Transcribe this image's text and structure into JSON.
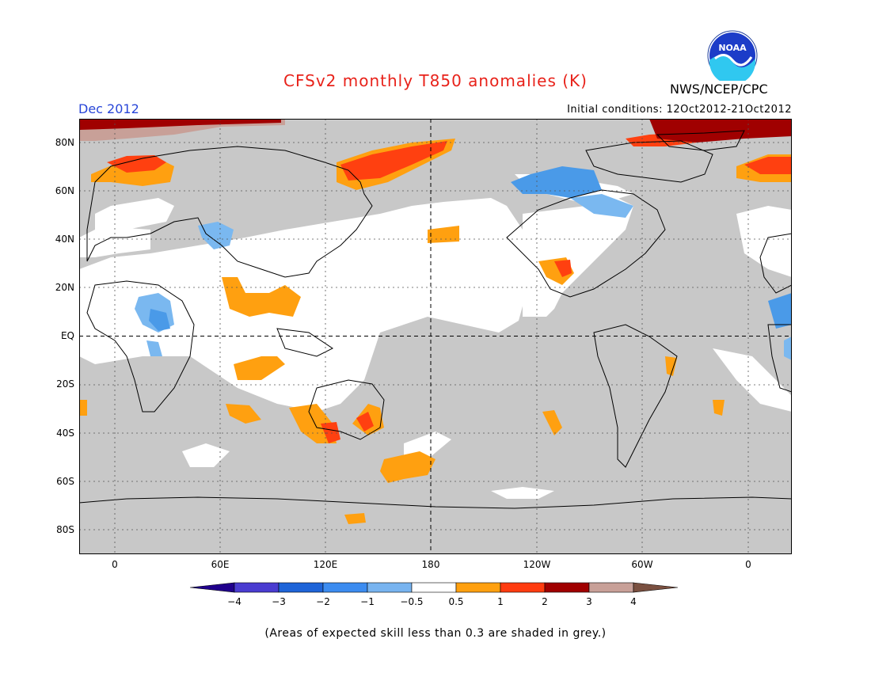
{
  "header": {
    "title": "CFSv2 monthly T850 anomalies (K)",
    "period": "Dec 2012",
    "initial_conditions": "Initial conditions: 12Oct2012-21Oct2012",
    "agency": "NWS/NCEP/CPC",
    "logo_text": "NOAA"
  },
  "map": {
    "lat_labels": [
      "80N",
      "60N",
      "40N",
      "20N",
      "EQ",
      "20S",
      "40S",
      "60S",
      "80S"
    ],
    "lon_labels": [
      "0",
      "60E",
      "120E",
      "180",
      "120W",
      "60W",
      "0"
    ],
    "colors": {
      "grey_low_skill": "#c8c8c8",
      "ocean_skill": "#ffffff",
      "cool_1": "#7ab8f0",
      "cool_2": "#4a9ae8",
      "warm_1": "#ffa010",
      "warm_2": "#ff4010",
      "warm_3": "#a00000",
      "warm_4": "#c8a098"
    }
  },
  "legend": {
    "labels": [
      "−4",
      "−3",
      "−2",
      "−1",
      "−0.5",
      "0.5",
      "1",
      "2",
      "3",
      "4"
    ],
    "colors": [
      "#20008c",
      "#4a3cd0",
      "#1e64d8",
      "#3c8cf0",
      "#78b4f0",
      "#ffffff",
      "#ffa010",
      "#ff3c10",
      "#a00000",
      "#c8a098",
      "#7a5040"
    ]
  },
  "footer": {
    "note": "(Areas of expected skill less than 0.3 are shaded in grey.)"
  }
}
